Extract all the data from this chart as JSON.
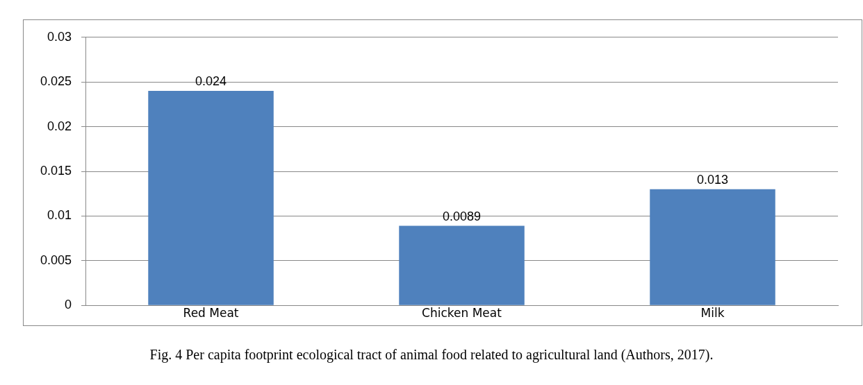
{
  "chart_data": {
    "type": "bar",
    "categories": [
      "Red Meat",
      "Chicken Meat",
      "Milk"
    ],
    "values": [
      0.024,
      0.0089,
      0.013
    ],
    "color": "#4f81bd",
    "ylim": [
      0,
      0.03
    ],
    "yticks": [
      0,
      0.005,
      0.01,
      0.015,
      0.02,
      0.025,
      0.03
    ],
    "grid": "y",
    "data_labels": true,
    "legend": false,
    "annotations": [
      "Fig. 4 Per capita footprint ecological tract of animal food related to agricultural land (Authors, 2017)."
    ]
  }
}
